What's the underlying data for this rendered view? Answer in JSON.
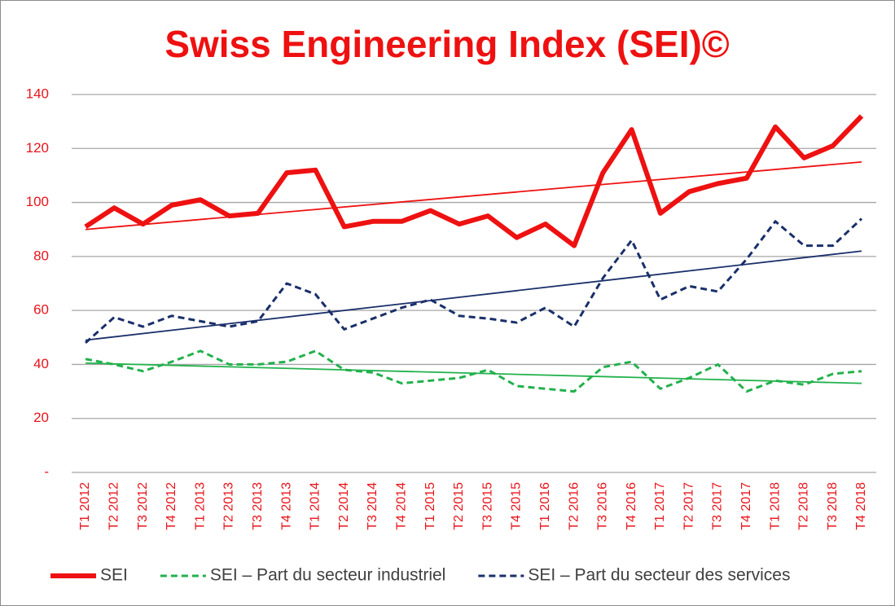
{
  "chart_data": {
    "type": "line",
    "title": "Swiss Engineering Index (SEI)©",
    "categories": [
      "T1 2012",
      "T2 2012",
      "T3 2012",
      "T4 2012",
      "T1 2013",
      "T2 2013",
      "T3 2013",
      "T4 2013",
      "T1 2014",
      "T2 2014",
      "T3 2014",
      "T4 2014",
      "T1 2015",
      "T2 2015",
      "T3 2015",
      "T4 2015",
      "T1 2016",
      "T2 2016",
      "T3 2016",
      "T4 2016",
      "T1 2017",
      "T2 2017",
      "T3 2017",
      "T4 2017",
      "T1 2018",
      "T2 2018",
      "T3 2018",
      "T4 2018"
    ],
    "series": [
      {
        "name": "SEI",
        "color": "#ee1111",
        "style": "solid",
        "width": 6,
        "values": [
          91,
          98,
          92,
          99,
          101,
          95,
          96,
          111,
          112,
          91,
          93,
          93,
          97,
          92,
          95,
          87,
          92,
          84,
          111,
          127,
          96,
          104,
          107,
          109,
          128,
          116.5,
          121,
          132
        ],
        "trend": [
          90,
          115
        ]
      },
      {
        "name": "SEI – Part du secteur industriel",
        "color": "#22b14c",
        "style": "dashed",
        "width": 3,
        "values": [
          42,
          40,
          37.5,
          41,
          45,
          40,
          40,
          41,
          45,
          38,
          37,
          33,
          34,
          35,
          38,
          32,
          31,
          30,
          39,
          41,
          31,
          35,
          40,
          30,
          34,
          32.5,
          36.5,
          37.5
        ],
        "trend": [
          40.5,
          33
        ]
      },
      {
        "name": "SEI – Part du secteur des services",
        "color": "#1a2f6b",
        "style": "dashed",
        "width": 3,
        "values": [
          48,
          57.5,
          54,
          58,
          56,
          54,
          56,
          70,
          66,
          53,
          57,
          61,
          64,
          58,
          57,
          55.5,
          61,
          54,
          72,
          86,
          64,
          69,
          67,
          79,
          93,
          84,
          84,
          94
        ],
        "trend": [
          49,
          82
        ]
      }
    ],
    "ylim": [
      0,
      140
    ],
    "yticks": [
      {
        "value": 0,
        "label": "-"
      },
      20,
      40,
      60,
      80,
      100,
      120,
      140
    ],
    "grid": true,
    "legend": "bottom"
  }
}
